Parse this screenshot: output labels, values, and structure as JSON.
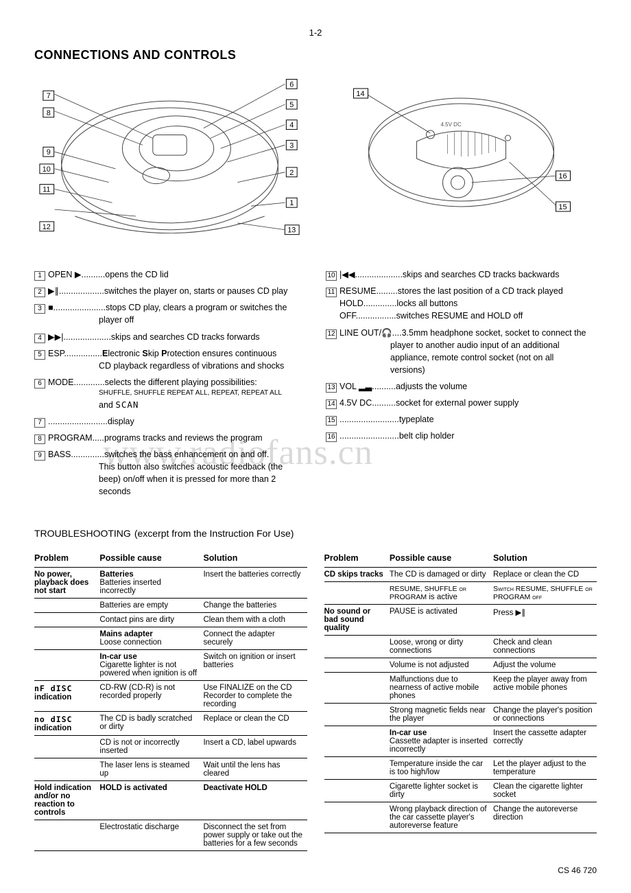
{
  "page_number_top": "1-2",
  "title": "CONNECTIONS AND CONTROLS",
  "watermark": "www.radiofans.cn",
  "diagrams": {
    "left_callouts": [
      "1",
      "2",
      "3",
      "4",
      "5",
      "6",
      "7",
      "8",
      "9",
      "10",
      "11",
      "12",
      "13"
    ],
    "right_callouts": [
      "14",
      "15",
      "16"
    ],
    "bottom_text": "4.5V DC"
  },
  "controls_left": [
    {
      "n": "1",
      "label": "OPEN ▶",
      "dots": "..........",
      "desc": "opens the CD lid"
    },
    {
      "n": "2",
      "label": "▶∥",
      "dots": "...................",
      "desc": "switches the player on, starts or pauses CD play"
    },
    {
      "n": "3",
      "label": "■",
      "dots": "......................",
      "desc": "stops CD play, clears a program or switches the",
      "sub": "player off"
    },
    {
      "n": "4",
      "label": "▶▶|",
      "dots": "....................",
      "desc": "skips and searches CD tracks forwards"
    },
    {
      "n": "5",
      "label": "ESP",
      "dots": "................",
      "desc": "Electronic Skip Protection ensures continuous",
      "sub": "CD playback regardless of vibrations and shocks",
      "bold_esc": true
    },
    {
      "n": "6",
      "label": "MODE",
      "dots": ".............",
      "desc": "selects the different playing possibilities:",
      "sub2": "SHUFFLE, SHUFFLE REPEAT ALL, REPEAT, REPEAT ALL",
      "sub3": "and SCAN",
      "seg": true
    },
    {
      "n": "7",
      "label": "",
      "dots": ".........................",
      "desc": "display"
    },
    {
      "n": "8",
      "label": "PROGRAM",
      "dots": ".....",
      "desc": "programs tracks and reviews the program"
    },
    {
      "n": "9",
      "label": "BASS",
      "dots": "..............",
      "desc": "switches the bass enhancement on and off.",
      "sub": "This button also switches acoustic feedback (the",
      "sub4": "beep) on/off when it is pressed for more than 2",
      "sub5": "seconds"
    }
  ],
  "controls_right": [
    {
      "n": "10",
      "label": "|◀◀",
      "dots": "....................",
      "desc": "skips and searches CD tracks backwards"
    },
    {
      "n": "11",
      "label": "RESUME",
      "dots": ".........",
      "desc": "stores the last position of a CD track played",
      "line2_label": "HOLD",
      "line2_dots": "..............",
      "line2_desc": "locks all buttons",
      "line3_label": "OFF",
      "line3_dots": ".................",
      "line3_desc": "switches RESUME and HOLD off"
    },
    {
      "n": "12",
      "label": "LINE OUT/🎧",
      "dots": "....",
      "desc": "3.5mm headphone socket, socket to connect the",
      "sub": "player to another audio input of an additional",
      "sub4": "appliance, remote control socket (not on all",
      "sub5": "versions)"
    },
    {
      "n": "13",
      "label": "VOL ▂▃",
      "dots": "..........",
      "desc": "adjusts the volume"
    },
    {
      "n": "14",
      "label": "4.5V DC",
      "dots": "..........",
      "desc": "socket for external power supply"
    },
    {
      "n": "15",
      "label": "",
      "dots": ".........................",
      "desc": "typeplate"
    },
    {
      "n": "16",
      "label": "",
      "dots": ".........................",
      "desc": "belt clip holder"
    }
  ],
  "troubleshooting_title": "TROUBLESHOOTING",
  "troubleshooting_sub": "(excerpt from the Instruction For Use)",
  "ts_headers": {
    "problem": "Problem",
    "cause": "Possible cause",
    "solution": "Solution"
  },
  "ts_left": [
    {
      "problem": "No power, playback does not start",
      "cause_b": "Batteries",
      "cause": "Batteries inserted incorrectly",
      "sol": "Insert the batteries correctly"
    },
    {
      "cause": "Batteries are empty",
      "sol": "Change the batteries"
    },
    {
      "cause": "Contact pins are dirty",
      "sol": "Clean them with a cloth"
    },
    {
      "cause_b": "Mains adapter",
      "cause": "Loose connection",
      "sol": "Connect the adapter securely"
    },
    {
      "cause_b": "In-car use",
      "cause": "Cigarette lighter is not powered when ignition is off",
      "sol": "Switch on ignition or insert batteries"
    },
    {
      "problem_seg": "nF dISC",
      "problem": "indication",
      "cause": "CD-RW (CD-R) is not recorded properly",
      "sol": "Use FINALIZE on the CD Recorder to complete the recording"
    },
    {
      "problem_seg": "no dISC",
      "problem": "indication",
      "cause": "The CD is badly scratched or dirty",
      "sol": "Replace or clean the CD"
    },
    {
      "cause": "CD is not or incorrectly inserted",
      "sol": "Insert a CD, label upwards"
    },
    {
      "cause": "The laser lens is steamed up",
      "sol": "Wait until the lens has cleared"
    },
    {
      "problem": "Hold indication and/or no reaction to controls",
      "cause_b": "HOLD is activated",
      "sol_b": "Deactivate HOLD"
    },
    {
      "cause": "Electrostatic discharge",
      "sol": "Disconnect the set from power supply or take out the batteries for a few seconds"
    }
  ],
  "ts_right": [
    {
      "problem": "CD skips tracks",
      "cause": "The CD is damaged or dirty",
      "sol": "Replace or clean the CD"
    },
    {
      "cause_sc": "RESUME, SHUFFLE or PROGRAM",
      "cause": "is active",
      "sol_sc": "Switch RESUME, SHUFFLE or PROGRAM off"
    },
    {
      "problem": "No sound or bad sound quality",
      "cause": "PAUSE is activated",
      "sol": "Press ▶∥"
    },
    {
      "cause": "Loose, wrong or dirty connections",
      "sol": "Check and clean connections"
    },
    {
      "cause": "Volume is not adjusted",
      "sol": "Adjust the volume"
    },
    {
      "cause": "Malfunctions due to nearness of active mobile phones",
      "sol": "Keep the player away from active mobile phones"
    },
    {
      "cause": "Strong magnetic fields near the player",
      "sol": "Change the player's position or connections"
    },
    {
      "cause_b": "In-car use",
      "cause": "Cassette adapter is inserted incorrectly",
      "sol": "Insert the cassette adapter correctly"
    },
    {
      "cause": "Temperature inside the car is too high/low",
      "sol": "Let the player adjust to the temperature"
    },
    {
      "cause": "Cigarette lighter socket is dirty",
      "sol": "Clean the cigarette lighter socket"
    },
    {
      "cause": "Wrong playback direction of the car cassette player's autoreverse feature",
      "sol": "Change the autoreverse direction"
    }
  ],
  "footer_code": "CS 46 720"
}
